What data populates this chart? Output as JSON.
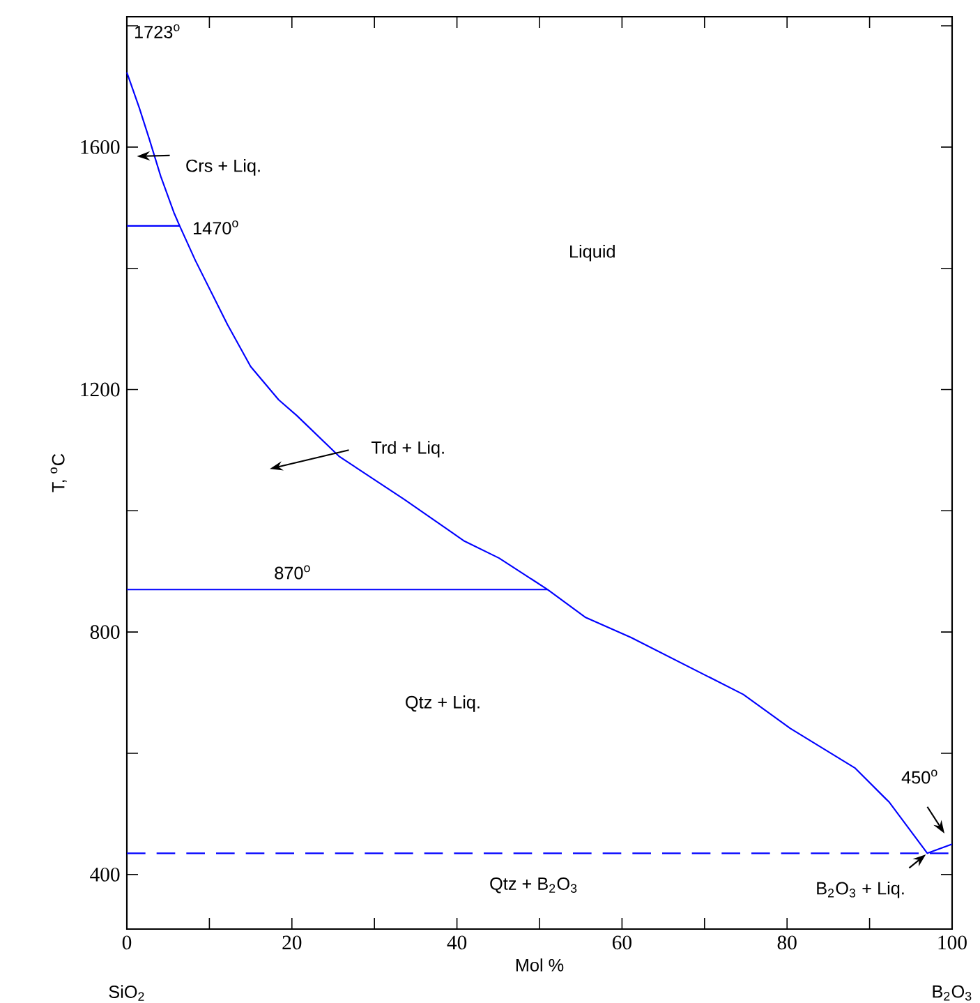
{
  "chart_data": {
    "type": "line",
    "xlabel": "Mol %",
    "ylabel": "T, $^{o}$C",
    "xlim": [
      0,
      100
    ],
    "ylim": [
      310,
      1815
    ],
    "xticks": [
      0,
      {
        "value": 10,
        "label": null
      },
      20,
      {
        "value": 30,
        "label": null
      },
      40,
      {
        "value": 50,
        "label": null
      },
      60,
      {
        "value": 70,
        "label": null
      },
      80,
      {
        "value": 90,
        "label": null
      },
      100
    ],
    "yticks": [
      400,
      {
        "value": 600,
        "label": null
      },
      800,
      {
        "value": 1000,
        "label": null
      },
      1200,
      {
        "value": 1400,
        "label": null
      },
      1600,
      {
        "value": 1800,
        "label": null
      }
    ],
    "marker": "none",
    "series": [
      {
        "color": "#0000ff",
        "x": [
          0,
          1.5,
          2.7,
          4.1,
          5.7,
          6.4,
          8.3,
          12.2,
          15.0,
          18.4,
          20.6,
          25.7,
          33.6,
          40.9,
          45.1,
          51.0,
          55.6,
          61.1,
          74.7,
          80.4,
          88.2,
          92.4,
          97.0,
          100
        ],
        "values": [
          1723,
          1665,
          1614,
          1552,
          1492,
          1470,
          1413,
          1307,
          1238,
          1183,
          1157,
          1090,
          1019,
          950,
          922,
          870,
          824,
          791,
          697,
          641,
          576,
          519,
          435,
          450
        ]
      },
      {
        "color": "#0000ff",
        "x": [
          0,
          6.4
        ],
        "values": [
          1470,
          1470
        ]
      },
      {
        "color": "#0000ff",
        "x": [
          0,
          51.0
        ],
        "values": [
          870,
          870
        ]
      }
    ],
    "ref_lines": [
      {
        "axis": "y",
        "value": 435,
        "label": null,
        "color": "#0000ff",
        "line_style": "dashed"
      }
    ],
    "annotations": [
      "1723$^{o}$",
      "Crs + Liq.",
      "1470$^{o}$",
      "Liquid",
      "Trd + Liq.",
      "870$^{o}$",
      "Qtz + Liq.",
      "450$^{o}$",
      "Qtz + B$_{2}$O$_{3}$",
      {
        "text": "B$_{2}$O$_{3}$ + Liq.",
        "x": 97,
        "y": 435
      },
      "SiO$_{2}$",
      "B$_{2}$O$_{3}$"
    ]
  }
}
